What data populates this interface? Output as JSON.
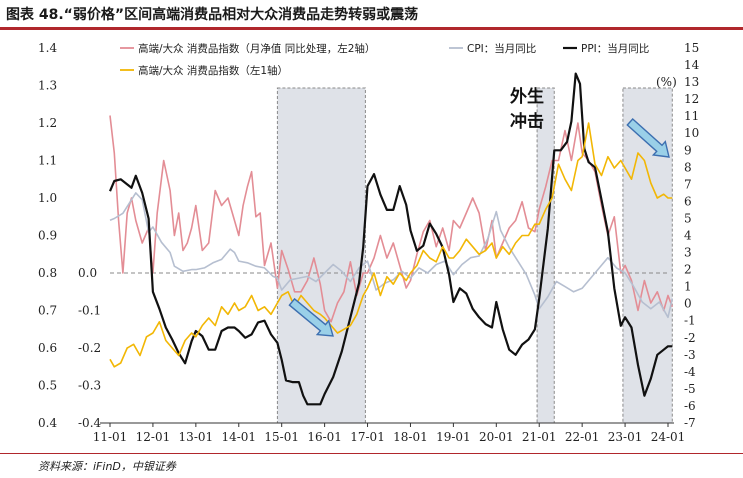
{
  "header": {
    "title": "图表 48.“弱价格”区间高端消费品相对大众消费品走势转弱或震荡"
  },
  "footer": {
    "source": "资料来源：iFinD，中银证券"
  },
  "chart_data": {
    "type": "line",
    "x_tick_labels": [
      "11-01",
      "12-01",
      "13-01",
      "14-01",
      "15-01",
      "16-01",
      "17-01",
      "18-01",
      "19-01",
      "20-01",
      "21-01",
      "22-01",
      "23-01",
      "24-01"
    ],
    "left_axis": {
      "ylim": [
        0.4,
        1.4
      ],
      "ticks": [
        "0.4",
        "0.5",
        "0.6",
        "0.7",
        "0.8",
        "0.9",
        "1.0",
        "1.1",
        "1.2",
        "1.3",
        "1.4"
      ]
    },
    "right_axis": {
      "ylim": [
        -7,
        15
      ],
      "ticks": [
        "-7",
        "-6",
        "-5",
        "-4",
        "-3",
        "-2",
        "-1",
        "0",
        "1",
        "2",
        "3",
        "4",
        "5",
        "6",
        "7",
        "8",
        "9",
        "10",
        "11",
        "12",
        "13",
        "14",
        "15"
      ],
      "unit": "(%)"
    },
    "inner_axis": {
      "ticks": [
        "-0.4",
        "-0.3",
        "-0.2",
        "-0.1",
        "0.0"
      ]
    },
    "shaded_periods": [
      {
        "start": 2014.9,
        "end": 2016.95
      },
      {
        "start": 2020.95,
        "end": 2021.35
      },
      {
        "start": 2022.95,
        "end": 2024.1
      }
    ],
    "annotation": [
      "外生",
      "冲击"
    ],
    "series": [
      {
        "name": "高端/大众 消费品指数（月净值 同比处理，左2轴）",
        "color": "#e38d95",
        "axis": "left",
        "x": [
          2011.0,
          2011.1,
          2011.2,
          2011.3,
          2011.4,
          2011.5,
          2011.6,
          2011.75,
          2011.9,
          2012.0,
          2012.1,
          2012.25,
          2012.4,
          2012.5,
          2012.6,
          2012.7,
          2012.8,
          2012.9,
          2013.0,
          2013.15,
          2013.3,
          2013.45,
          2013.6,
          2013.75,
          2013.9,
          2014.0,
          2014.1,
          2014.2,
          2014.3,
          2014.4,
          2014.5,
          2014.6,
          2014.75,
          2014.9,
          2015.0,
          2015.15,
          2015.3,
          2015.45,
          2015.6,
          2015.75,
          2015.9,
          2016.0,
          2016.15,
          2016.3,
          2016.45,
          2016.6,
          2016.75,
          2016.9,
          2017.0,
          2017.15,
          2017.3,
          2017.45,
          2017.6,
          2017.75,
          2017.9,
          2018.0,
          2018.15,
          2018.3,
          2018.45,
          2018.6,
          2018.75,
          2018.9,
          2019.0,
          2019.15,
          2019.3,
          2019.45,
          2019.6,
          2019.75,
          2019.9,
          2020.0,
          2020.15,
          2020.3,
          2020.45,
          2020.6,
          2020.75,
          2020.9,
          2021.0,
          2021.15,
          2021.3,
          2021.45,
          2021.6,
          2021.75,
          2021.9,
          2022.0,
          2022.15,
          2022.3,
          2022.45,
          2022.6,
          2022.75,
          2022.9,
          2023.0,
          2023.15,
          2023.3,
          2023.45,
          2023.6,
          2023.75,
          2023.9,
          2024.0,
          2024.1
        ],
        "values": [
          1.22,
          1.12,
          0.94,
          0.8,
          0.96,
          1.0,
          0.94,
          0.88,
          0.92,
          0.8,
          0.96,
          1.1,
          1.02,
          0.9,
          0.96,
          0.86,
          0.88,
          0.92,
          0.98,
          0.86,
          0.88,
          1.02,
          0.98,
          1.0,
          0.94,
          0.9,
          0.98,
          1.03,
          1.07,
          0.95,
          0.96,
          0.82,
          0.88,
          0.76,
          0.86,
          0.81,
          0.75,
          0.75,
          0.78,
          0.84,
          0.77,
          0.7,
          0.67,
          0.72,
          0.75,
          0.83,
          0.74,
          0.8,
          0.8,
          0.84,
          0.9,
          0.84,
          0.88,
          0.82,
          0.76,
          0.78,
          0.85,
          0.91,
          0.94,
          0.87,
          0.92,
          0.86,
          0.94,
          0.92,
          0.96,
          1.0,
          0.96,
          0.86,
          0.94,
          0.84,
          0.88,
          0.92,
          0.94,
          0.99,
          0.92,
          0.91,
          0.97,
          1.03,
          1.1,
          1.1,
          1.18,
          1.1,
          1.2,
          1.12,
          1.1,
          1.07,
          0.98,
          0.9,
          0.95,
          0.8,
          0.82,
          0.78,
          0.7,
          0.78,
          0.72,
          0.75,
          0.7,
          0.74,
          0.71
        ]
      },
      {
        "name": "CPI：当月同比",
        "color": "#b6bfd0",
        "axis": "right",
        "x": [
          2011.0,
          2011.1,
          2011.3,
          2011.5,
          2011.6,
          2011.75,
          2011.9,
          2012.0,
          2012.2,
          2012.4,
          2012.5,
          2012.7,
          2012.9,
          2013.0,
          2013.2,
          2013.4,
          2013.6,
          2013.8,
          2013.9,
          2014.0,
          2014.2,
          2014.4,
          2014.6,
          2014.8,
          2014.9,
          2015.0,
          2015.2,
          2015.4,
          2015.6,
          2015.8,
          2016.0,
          2016.2,
          2016.4,
          2016.6,
          2016.8,
          2017.0,
          2017.2,
          2017.4,
          2017.6,
          2017.8,
          2018.0,
          2018.2,
          2018.4,
          2018.6,
          2018.8,
          2019.0,
          2019.2,
          2019.4,
          2019.6,
          2019.8,
          2020.0,
          2020.1,
          2020.3,
          2020.5,
          2020.7,
          2020.9,
          2021.0,
          2021.2,
          2021.4,
          2021.6,
          2021.8,
          2022.0,
          2022.2,
          2022.4,
          2022.6,
          2022.8,
          2023.0,
          2023.2,
          2023.4,
          2023.6,
          2023.8,
          2024.0,
          2024.1
        ],
        "values": [
          4.9,
          5.0,
          5.3,
          6.1,
          6.5,
          6.1,
          4.2,
          4.5,
          3.6,
          3.0,
          2.2,
          1.9,
          2.0,
          2.0,
          2.1,
          2.4,
          2.6,
          3.2,
          3.0,
          2.5,
          2.4,
          2.2,
          2.1,
          1.6,
          1.5,
          0.8,
          1.4,
          1.5,
          1.6,
          1.3,
          1.8,
          2.3,
          1.9,
          1.3,
          2.1,
          2.5,
          0.8,
          1.2,
          1.4,
          1.9,
          1.5,
          2.1,
          1.8,
          2.3,
          2.5,
          1.7,
          2.3,
          2.7,
          2.8,
          3.8,
          5.4,
          4.3,
          3.3,
          2.5,
          1.7,
          0.5,
          -0.3,
          0.4,
          1.3,
          1.0,
          0.7,
          0.9,
          1.5,
          2.1,
          2.7,
          2.1,
          1.8,
          1.0,
          0.1,
          -0.3,
          0.1,
          -0.8,
          0.3
        ]
      },
      {
        "name": "PPI：当月同比",
        "color": "#111111",
        "axis": "right",
        "x": [
          2011.0,
          2011.1,
          2011.25,
          2011.4,
          2011.5,
          2011.6,
          2011.75,
          2011.9,
          2012.0,
          2012.15,
          2012.3,
          2012.45,
          2012.6,
          2012.75,
          2012.9,
          2013.0,
          2013.15,
          2013.3,
          2013.45,
          2013.6,
          2013.75,
          2013.9,
          2014.0,
          2014.15,
          2014.3,
          2014.45,
          2014.6,
          2014.75,
          2014.9,
          2015.0,
          2015.1,
          2015.25,
          2015.4,
          2015.5,
          2015.6,
          2015.75,
          2015.9,
          2016.0,
          2016.2,
          2016.4,
          2016.6,
          2016.8,
          2016.9,
          2017.0,
          2017.15,
          2017.3,
          2017.45,
          2017.6,
          2017.75,
          2017.9,
          2018.0,
          2018.15,
          2018.3,
          2018.45,
          2018.6,
          2018.75,
          2018.9,
          2019.0,
          2019.15,
          2019.3,
          2019.45,
          2019.6,
          2019.75,
          2019.9,
          2020.0,
          2020.15,
          2020.3,
          2020.45,
          2020.6,
          2020.75,
          2020.9,
          2021.0,
          2021.2,
          2021.35,
          2021.5,
          2021.65,
          2021.75,
          2021.85,
          2021.95,
          2022.05,
          2022.15,
          2022.3,
          2022.45,
          2022.6,
          2022.75,
          2022.9,
          2023.0,
          2023.15,
          2023.3,
          2023.45,
          2023.6,
          2023.75,
          2023.9,
          2024.0,
          2024.1
        ],
        "values": [
          6.6,
          7.2,
          7.3,
          7.0,
          6.8,
          7.5,
          6.5,
          5.0,
          0.7,
          -0.3,
          -1.4,
          -2.1,
          -2.9,
          -3.5,
          -2.2,
          -1.6,
          -1.9,
          -2.7,
          -2.7,
          -1.6,
          -1.4,
          -1.4,
          -1.6,
          -2.0,
          -1.8,
          -1.1,
          -1.0,
          -1.8,
          -2.3,
          -3.3,
          -4.5,
          -4.6,
          -4.6,
          -5.4,
          -5.9,
          -5.9,
          -5.9,
          -5.3,
          -4.3,
          -2.8,
          -0.8,
          1.2,
          3.3,
          6.9,
          7.6,
          6.4,
          5.5,
          5.5,
          6.9,
          5.8,
          4.3,
          3.1,
          3.4,
          4.7,
          4.1,
          3.3,
          1.7,
          0.1,
          0.9,
          0.6,
          -0.3,
          -0.8,
          -1.2,
          -1.4,
          0.1,
          -1.5,
          -2.7,
          -3.0,
          -2.4,
          -2.1,
          -1.5,
          0.3,
          4.4,
          9.0,
          9.0,
          9.5,
          10.7,
          13.5,
          12.9,
          9.1,
          8.3,
          8.0,
          6.1,
          4.2,
          0.9,
          -1.3,
          -0.8,
          -1.4,
          -3.6,
          -5.4,
          -4.4,
          -3.0,
          -2.7,
          -2.5,
          -2.5
        ]
      },
      {
        "name": "高端/大众 消费品指数（左1轴）",
        "color": "#f2b705",
        "axis": "left",
        "x": [
          2011.0,
          2011.1,
          2011.25,
          2011.4,
          2011.55,
          2011.7,
          2011.85,
          2012.0,
          2012.15,
          2012.3,
          2012.45,
          2012.6,
          2012.75,
          2012.9,
          2013.0,
          2013.15,
          2013.3,
          2013.45,
          2013.6,
          2013.75,
          2013.9,
          2014.0,
          2014.15,
          2014.3,
          2014.45,
          2014.6,
          2014.75,
          2014.9,
          2015.0,
          2015.15,
          2015.3,
          2015.45,
          2015.6,
          2015.75,
          2015.9,
          2016.0,
          2016.15,
          2016.3,
          2016.45,
          2016.6,
          2016.75,
          2016.9,
          2017.0,
          2017.15,
          2017.3,
          2017.45,
          2017.6,
          2017.75,
          2017.9,
          2018.0,
          2018.15,
          2018.3,
          2018.45,
          2018.6,
          2018.75,
          2018.9,
          2019.0,
          2019.15,
          2019.3,
          2019.45,
          2019.6,
          2019.75,
          2019.9,
          2020.0,
          2020.15,
          2020.3,
          2020.45,
          2020.6,
          2020.75,
          2020.9,
          2021.0,
          2021.15,
          2021.3,
          2021.45,
          2021.6,
          2021.75,
          2021.9,
          2022.0,
          2022.15,
          2022.3,
          2022.45,
          2022.6,
          2022.75,
          2022.9,
          2023.0,
          2023.15,
          2023.3,
          2023.45,
          2023.6,
          2023.75,
          2023.9,
          2024.0,
          2024.1
        ],
        "values": [
          0.57,
          0.55,
          0.56,
          0.6,
          0.61,
          0.58,
          0.63,
          0.64,
          0.67,
          0.62,
          0.6,
          0.58,
          0.62,
          0.64,
          0.63,
          0.66,
          0.68,
          0.66,
          0.71,
          0.69,
          0.72,
          0.7,
          0.71,
          0.74,
          0.7,
          0.71,
          0.69,
          0.72,
          0.74,
          0.75,
          0.71,
          0.74,
          0.72,
          0.7,
          0.69,
          0.68,
          0.66,
          0.64,
          0.65,
          0.66,
          0.69,
          0.74,
          0.76,
          0.8,
          0.74,
          0.79,
          0.77,
          0.8,
          0.78,
          0.8,
          0.82,
          0.86,
          0.84,
          0.83,
          0.87,
          0.84,
          0.84,
          0.86,
          0.89,
          0.87,
          0.85,
          0.86,
          0.88,
          0.84,
          0.87,
          0.85,
          0.88,
          0.9,
          0.9,
          0.93,
          0.93,
          0.97,
          1.0,
          1.09,
          1.05,
          1.02,
          1.1,
          1.11,
          1.2,
          1.09,
          1.06,
          1.11,
          1.08,
          1.1,
          1.08,
          1.05,
          1.12,
          1.1,
          1.04,
          1.0,
          1.01,
          1.0,
          1.0
        ]
      }
    ]
  }
}
